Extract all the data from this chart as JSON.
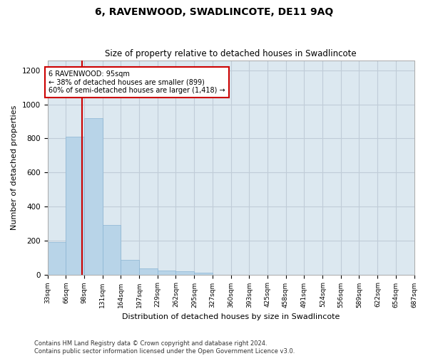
{
  "title": "6, RAVENWOOD, SWADLINCOTE, DE11 9AQ",
  "subtitle": "Size of property relative to detached houses in Swadlincote",
  "xlabel": "Distribution of detached houses by size in Swadlincote",
  "ylabel": "Number of detached properties",
  "bar_color": "#b8d4e8",
  "bar_edge_color": "#8ab4d4",
  "plot_bg_color": "#dce8f0",
  "background_color": "#ffffff",
  "grid_color": "#c0ccd8",
  "annotation_box_color": "#cc0000",
  "annotation_line_color": "#cc0000",
  "bins": [
    33,
    66,
    98,
    131,
    164,
    197,
    229,
    262,
    295,
    327,
    360,
    393,
    425,
    458,
    491,
    524,
    556,
    589,
    622,
    654,
    687
  ],
  "values": [
    190,
    810,
    920,
    290,
    88,
    35,
    22,
    18,
    12,
    0,
    0,
    0,
    0,
    0,
    0,
    0,
    0,
    0,
    0,
    0
  ],
  "property_size": 95,
  "annotation_line1": "6 RAVENWOOD: 95sqm",
  "annotation_line2": "← 38% of detached houses are smaller (899)",
  "annotation_line3": "60% of semi-detached houses are larger (1,418) →",
  "ylim": [
    0,
    1260
  ],
  "yticks": [
    0,
    200,
    400,
    600,
    800,
    1000,
    1200
  ],
  "footnote_line1": "Contains HM Land Registry data © Crown copyright and database right 2024.",
  "footnote_line2": "Contains public sector information licensed under the Open Government Licence v3.0.",
  "tick_labels": [
    "33sqm",
    "66sqm",
    "98sqm",
    "131sqm",
    "164sqm",
    "197sqm",
    "229sqm",
    "262sqm",
    "295sqm",
    "327sqm",
    "360sqm",
    "393sqm",
    "425sqm",
    "458sqm",
    "491sqm",
    "524sqm",
    "556sqm",
    "589sqm",
    "622sqm",
    "654sqm",
    "687sqm"
  ]
}
